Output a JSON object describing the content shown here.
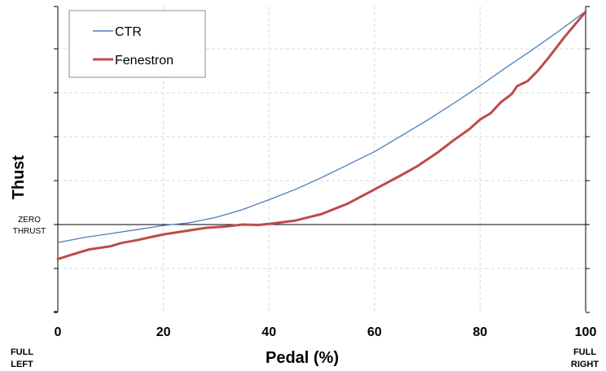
{
  "chart_data": {
    "type": "line",
    "xlabel": "Pedal (%)",
    "ylabel": "Thust",
    "xlim": [
      0,
      100
    ],
    "x_ticks": [
      "0",
      "20",
      "40",
      "60",
      "80",
      "100"
    ],
    "y_annotation": [
      "ZERO",
      "THRUST"
    ],
    "x_annotation_left": [
      "FULL",
      "LEFT"
    ],
    "x_annotation_right": [
      "FULL",
      "RIGHT"
    ],
    "grid": true,
    "legend_position": "top-left",
    "series": [
      {
        "name": "CTR",
        "color": "#4a7ebb",
        "x": [
          0,
          5,
          10,
          15,
          20,
          25,
          30,
          35,
          40,
          45,
          50,
          55,
          60,
          65,
          70,
          75,
          80,
          85,
          90,
          95,
          100
        ],
        "y": [
          -0.82,
          -0.59,
          -0.41,
          -0.23,
          -0.04,
          0.08,
          0.33,
          0.68,
          1.13,
          1.6,
          2.14,
          2.73,
          3.32,
          4.03,
          4.75,
          5.52,
          6.32,
          7.16,
          7.97,
          8.82,
          9.71
        ]
      },
      {
        "name": "Fenestron",
        "color": "#be4b48",
        "x": [
          0,
          2,
          4,
          6,
          10,
          12,
          15,
          18,
          20,
          24,
          28,
          32,
          35,
          38,
          40,
          45,
          50,
          55,
          60,
          65,
          68,
          72,
          75,
          78,
          80,
          82,
          84,
          86,
          87,
          89,
          91,
          93,
          96,
          100
        ],
        "y": [
          -1.57,
          -1.42,
          -1.27,
          -1.13,
          -0.99,
          -0.84,
          -0.71,
          -0.55,
          -0.45,
          -0.3,
          -0.15,
          -0.08,
          0,
          -0.02,
          0.03,
          0.18,
          0.48,
          0.96,
          1.6,
          2.24,
          2.64,
          3.29,
          3.84,
          4.35,
          4.78,
          5.07,
          5.58,
          5.94,
          6.3,
          6.53,
          7.02,
          7.6,
          8.54,
          9.69
        ]
      }
    ]
  }
}
